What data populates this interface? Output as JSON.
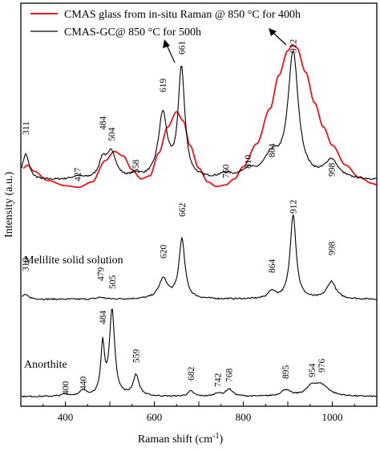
{
  "chart_data": {
    "type": "line",
    "xlabel": "Raman shift (cm",
    "xlabel_sup": "-1",
    "xlabel_tail": ")",
    "ylabel": "Intensity (a.u.)",
    "xlim": [
      300,
      1100
    ],
    "xticks": [
      400,
      600,
      800,
      1000
    ],
    "legend": [
      "CMAS glass from in-situ Raman @ 850 °C for 400h",
      "CMAS-GC@ 850 °C for 500h"
    ],
    "series": [
      {
        "name": "CMAS glass from in-situ Raman @ 850 °C for 400h",
        "color": "#e8161e",
        "points": [
          [
            305,
            0.15
          ],
          [
            315,
            0.17
          ],
          [
            330,
            0.13
          ],
          [
            360,
            0.07
          ],
          [
            400,
            0.035
          ],
          [
            430,
            0.025
          ],
          [
            460,
            0.06
          ],
          [
            490,
            0.2
          ],
          [
            510,
            0.26
          ],
          [
            530,
            0.23
          ],
          [
            550,
            0.14
          ],
          [
            570,
            0.08
          ],
          [
            590,
            0.1
          ],
          [
            610,
            0.25
          ],
          [
            630,
            0.42
          ],
          [
            650,
            0.52
          ],
          [
            665,
            0.46
          ],
          [
            680,
            0.3
          ],
          [
            700,
            0.15
          ],
          [
            720,
            0.06
          ],
          [
            740,
            0.03
          ],
          [
            760,
            0.04
          ],
          [
            780,
            0.08
          ],
          [
            800,
            0.16
          ],
          [
            830,
            0.31
          ],
          [
            860,
            0.54
          ],
          [
            880,
            0.76
          ],
          [
            900,
            0.92
          ],
          [
            910,
            0.96
          ],
          [
            920,
            0.94
          ],
          [
            940,
            0.78
          ],
          [
            960,
            0.58
          ],
          [
            980,
            0.42
          ],
          [
            1000,
            0.3
          ],
          [
            1030,
            0.17
          ],
          [
            1060,
            0.09
          ],
          [
            1090,
            0.05
          ],
          [
            1100,
            0.04
          ]
        ]
      },
      {
        "name": "CMAS-GC@ 850 °C for 500h",
        "color": "#000000",
        "peaks": [
          [
            311,
            0.17,
            9
          ],
          [
            427,
            0.02,
            15
          ],
          [
            484,
            0.12,
            10
          ],
          [
            504,
            0.17,
            12
          ],
          [
            558,
            0.03,
            12
          ],
          [
            619,
            0.42,
            12
          ],
          [
            661,
            0.72,
            9
          ],
          [
            760,
            0.03,
            15
          ],
          [
            810,
            0.05,
            18
          ],
          [
            864,
            0.14,
            22
          ],
          [
            912,
            0.82,
            14
          ],
          [
            998,
            0.12,
            18
          ]
        ],
        "baseline": 0.07
      },
      {
        "name": "Melilite solid solution",
        "color": "#000000",
        "peaks": [
          [
            310,
            0.035,
            10
          ],
          [
            479,
            0.015,
            10
          ],
          [
            620,
            0.16,
            12
          ],
          [
            662,
            0.48,
            8
          ],
          [
            864,
            0.06,
            10
          ],
          [
            912,
            0.68,
            8
          ],
          [
            998,
            0.14,
            12
          ]
        ],
        "baseline": 0.02
      },
      {
        "name": "Anorthite",
        "color": "#000000",
        "peaks": [
          [
            400,
            0.02,
            10
          ],
          [
            440,
            0.05,
            10
          ],
          [
            484,
            0.48,
            5
          ],
          [
            505,
            0.82,
            7
          ],
          [
            559,
            0.2,
            8
          ],
          [
            682,
            0.05,
            8
          ],
          [
            742,
            0.03,
            8
          ],
          [
            768,
            0.07,
            10
          ],
          [
            895,
            0.06,
            12
          ],
          [
            954,
            0.08,
            15
          ],
          [
            976,
            0.1,
            20
          ]
        ],
        "baseline": 0.03
      }
    ],
    "peak_labels": {
      "top": [
        "311",
        "427",
        "484",
        "504",
        "558",
        "619",
        "661",
        "760",
        "810",
        "864",
        "912",
        "998"
      ],
      "middle": [
        "310",
        "479",
        "620",
        "662",
        "864",
        "912",
        "998"
      ],
      "bottom": [
        "400",
        "440",
        "484",
        "505",
        "559",
        "682",
        "742",
        "768",
        "895",
        "954",
        "976"
      ]
    },
    "sample_labels": [
      "Melilite solid solution",
      "Anorthite"
    ]
  }
}
